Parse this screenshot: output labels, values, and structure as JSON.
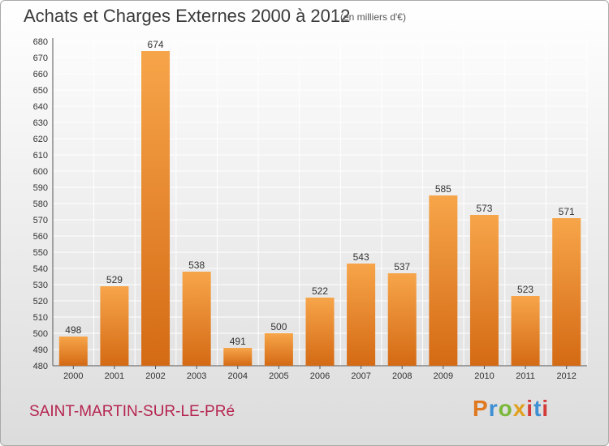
{
  "header": {
    "title": "Achats et Charges Externes 2000 à 2012",
    "unit": "(en milliers d'€)"
  },
  "footer": {
    "commune": "SAINT-MARTIN-SUR-LE-PRé",
    "brand": "Proxiti"
  },
  "colors": {
    "bar_top": "#f7a54a",
    "bar_bottom": "#d46a14",
    "grid": "#ffffff",
    "commune_text": "#b5244f"
  },
  "chart_data": {
    "type": "bar",
    "categories": [
      "2000",
      "2001",
      "2002",
      "2003",
      "2004",
      "2005",
      "2006",
      "2007",
      "2008",
      "2009",
      "2010",
      "2011",
      "2012"
    ],
    "series": [
      {
        "values": [
          498,
          529,
          674,
          538,
          491,
          500,
          522,
          543,
          537,
          585,
          573,
          523,
          571
        ]
      }
    ],
    "title": "Achats et Charges Externes 2000 à 2012",
    "xlabel": "",
    "ylabel": "",
    "ylim": [
      480,
      680
    ],
    "ytick_step": 10,
    "grid": true,
    "legend": "none"
  }
}
